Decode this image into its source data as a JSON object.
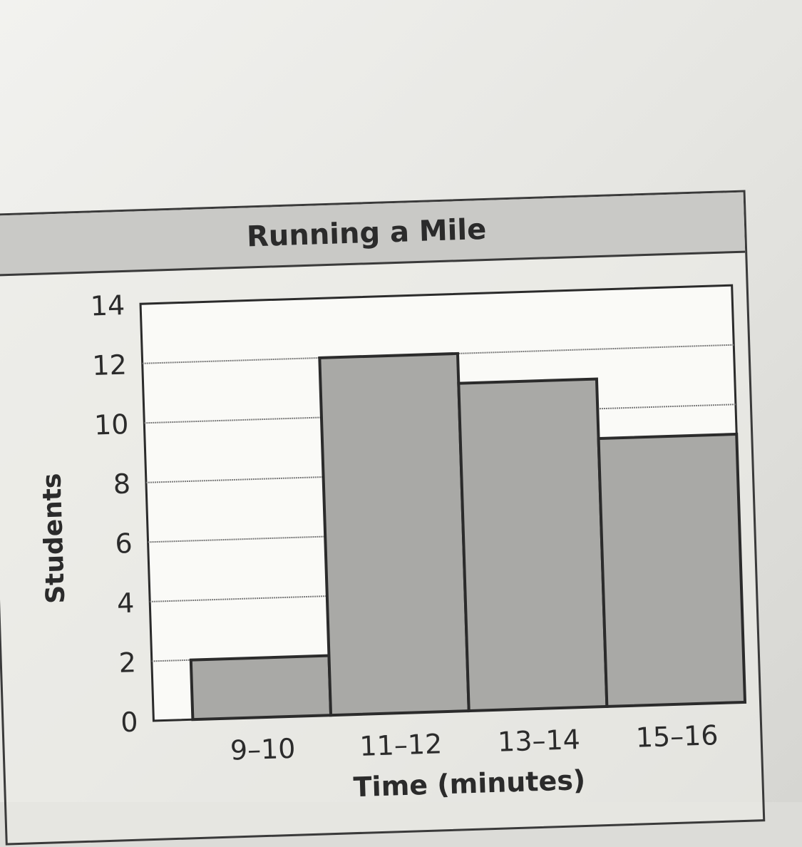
{
  "chart_data": {
    "type": "bar",
    "title": "Running a Mile",
    "xlabel": "Time (minutes)",
    "ylabel": "Students",
    "categories": [
      "9–10",
      "11–12",
      "13–14",
      "15–16"
    ],
    "values": [
      2,
      12,
      11,
      9
    ],
    "ylim": [
      0,
      14
    ],
    "yticks": [
      0,
      2,
      4,
      6,
      8,
      10,
      12,
      14
    ],
    "grid": true,
    "bar_color": "#a9a9a6"
  }
}
